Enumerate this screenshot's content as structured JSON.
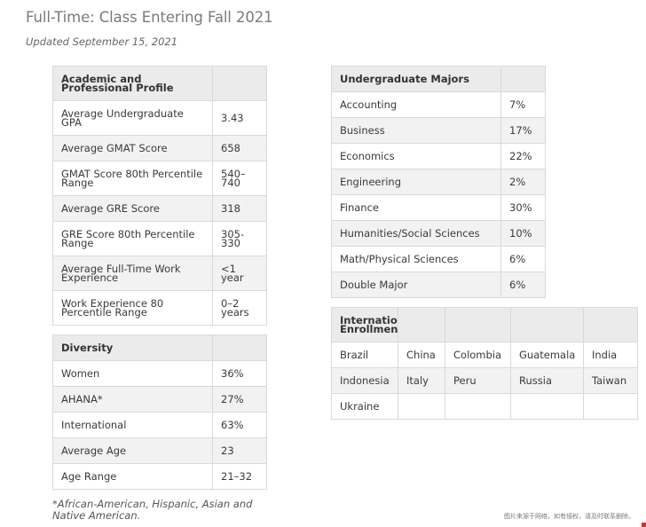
{
  "header": {
    "title": "Full-Time: Class Entering Fall 2021",
    "updated": "Updated September 15, 2021"
  },
  "academic": {
    "heading": "Academic and Professional Profile",
    "rows": [
      {
        "label": "Average Undergraduate GPA",
        "value": "3.43"
      },
      {
        "label": "Average GMAT Score",
        "value": "658"
      },
      {
        "label": "GMAT Score 80th Percentile Range",
        "value": "540–740"
      },
      {
        "label": "Average GRE Score",
        "value": "318"
      },
      {
        "label": "GRE Score 80th Percentile Range",
        "value": "305-330"
      },
      {
        "label": "Average Full-Time Work Experience",
        "value": "<1 year"
      },
      {
        "label": "Work Experience 80 Percentile Range",
        "value": "0–2 years"
      }
    ]
  },
  "diversity": {
    "heading": "Diversity",
    "rows": [
      {
        "label": "Women",
        "value": "36%"
      },
      {
        "label": "AHANA*",
        "value": "27%"
      },
      {
        "label": "International",
        "value": "63%"
      },
      {
        "label": "Average Age",
        "value": "23"
      },
      {
        "label": "Age Range",
        "value": "21–32"
      }
    ]
  },
  "majors": {
    "heading": "Undergraduate Majors",
    "rows": [
      {
        "label": "Accounting",
        "value": "7%"
      },
      {
        "label": "Business",
        "value": "17%"
      },
      {
        "label": "Economics",
        "value": "22%"
      },
      {
        "label": "Engineering",
        "value": "2%"
      },
      {
        "label": "Finance",
        "value": "30%"
      },
      {
        "label": "Humanities/Social Sciences",
        "value": "10%"
      },
      {
        "label": "Math/Physical Sciences",
        "value": "6%"
      },
      {
        "label": "Double Major",
        "value": "6%"
      }
    ]
  },
  "international": {
    "heading": "International Enrollments",
    "rows": [
      [
        "Brazil",
        "China",
        "Colombia",
        "Guatemala",
        "India"
      ],
      [
        "Indonesia",
        "Italy",
        "Peru",
        "Russia",
        "Taiwan"
      ],
      [
        "Ukraine",
        "",
        "",
        "",
        ""
      ]
    ]
  },
  "footnote": "*African-American, Hispanic, Asian and Native American.",
  "watermark": "图片来源于网络，如有侵权，请及时联系删除。"
}
